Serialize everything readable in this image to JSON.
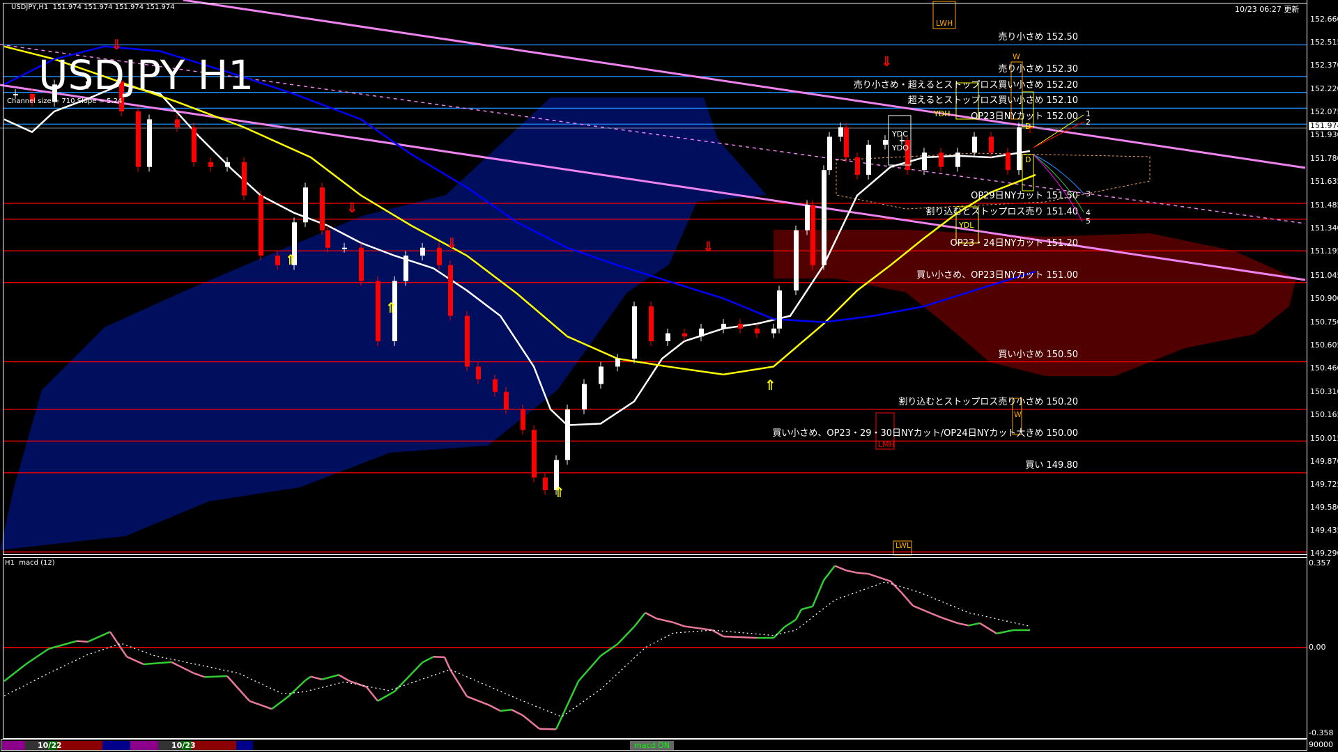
{
  "header": {
    "symbol_line": "USDJPY,H1  151.974 151.974 151.974 151.974",
    "title": "USDJPY H1",
    "channel_info": "Channel size = 710 Slope = 5.24",
    "updated": "10/23 06:27 更新",
    "current_price": "151.974"
  },
  "colors": {
    "background": "#000000",
    "bull_candle": "#ffffff",
    "bear_candle": "#ff0000",
    "ma_fast": "#ffffff",
    "ma_mid": "#ffff00",
    "ma_slow": "#0000ff",
    "trendline": "#ee82ee",
    "level_sell": "#1e90ff",
    "level_buy": "#ff0000",
    "macd_up": "#32cd32",
    "macd_down": "#e8799a",
    "macd_signal": "#ffffff"
  },
  "price_axis": {
    "ticks": [
      "152.660",
      "152.515",
      "152.370",
      "152.220",
      "152.075",
      "151.930",
      "151.780",
      "151.635",
      "151.485",
      "151.340",
      "151.195",
      "151.045",
      "150.900",
      "150.750",
      "150.605",
      "150.460",
      "150.310",
      "150.165",
      "150.015",
      "149.870",
      "149.725",
      "149.580",
      "149.435",
      "149.290"
    ]
  },
  "levels": [
    {
      "price": 152.5,
      "label": "売り小さめ 152.50",
      "type": "sell"
    },
    {
      "price": 152.3,
      "label": "売り小さめ 152.30",
      "type": "sell"
    },
    {
      "price": 152.2,
      "label": "売り小さめ・超えるとストップロス買い小さめ 152.20",
      "type": "sell"
    },
    {
      "price": 152.1,
      "label": "超えるとストップロス買い小さめ 152.10",
      "type": "sell"
    },
    {
      "price": 152.0,
      "label": "OP23日NYカット 152.00",
      "type": "sell"
    },
    {
      "price": 151.5,
      "label": "OP29日NYカット 151.50",
      "type": "buy"
    },
    {
      "price": 151.4,
      "label": "割り込むとストップロス売り 151.40",
      "type": "buy"
    },
    {
      "price": 151.2,
      "label": "OP23・24日NYカット 151.20",
      "type": "buy"
    },
    {
      "price": 151.0,
      "label": "買い小さめ、OP23日NYカット 151.00",
      "type": "buy"
    },
    {
      "price": 150.5,
      "label": "買い小さめ 150.50",
      "type": "buy"
    },
    {
      "price": 150.2,
      "label": "割り込むとストップロス売り小さめ 150.20",
      "type": "buy"
    },
    {
      "price": 150.0,
      "label": "買い小さめ、OP23・29・30日NYカット/OP24日NYカット大きめ 150.00",
      "type": "buy"
    },
    {
      "price": 149.8,
      "label": "買い 149.80",
      "type": "buy"
    }
  ],
  "markers": {
    "lwh": "LWH",
    "lwl": "LWL",
    "lmh": "LMH",
    "ydh": "YDH",
    "ydl": "YDL",
    "ydc": "YDC",
    "ydo": "YDO",
    "d_upper": "D",
    "d_lower": "D",
    "w_upper": "W",
    "w_lower": "W",
    "proj": [
      "1",
      "2",
      "3",
      "4",
      "5"
    ]
  },
  "chart_data": {
    "type": "candlestick",
    "symbol": "USDJPY",
    "timeframe": "H1",
    "ylim": [
      149.27,
      152.78
    ],
    "closes": [
      [
        2,
        152.19
      ],
      [
        5,
        152.14
      ],
      [
        9,
        152.25
      ],
      [
        15,
        152.27
      ],
      [
        21,
        152.08
      ],
      [
        24,
        151.73
      ],
      [
        26,
        152.03
      ],
      [
        31,
        151.98
      ],
      [
        34,
        151.76
      ],
      [
        37,
        151.73
      ],
      [
        40,
        151.76
      ],
      [
        43,
        151.55
      ],
      [
        46,
        151.17
      ],
      [
        49,
        151.11
      ],
      [
        52,
        151.38
      ],
      [
        54,
        151.6
      ],
      [
        57,
        151.33
      ],
      [
        58,
        151.22
      ],
      [
        61,
        151.22
      ],
      [
        64,
        151.01
      ],
      [
        67,
        150.63
      ],
      [
        70,
        151.01
      ],
      [
        72,
        151.17
      ],
      [
        75,
        151.22
      ],
      [
        78,
        151.11
      ],
      [
        80,
        150.79
      ],
      [
        83,
        150.47
      ],
      [
        85,
        150.39
      ],
      [
        88,
        150.31
      ],
      [
        90,
        150.2
      ],
      [
        93,
        150.07
      ],
      [
        95,
        149.77
      ],
      [
        97,
        149.69
      ],
      [
        99,
        149.88
      ],
      [
        101,
        150.2
      ],
      [
        104,
        150.36
      ],
      [
        107,
        150.47
      ],
      [
        110,
        150.52
      ],
      [
        113,
        150.85
      ],
      [
        116,
        150.63
      ],
      [
        119,
        150.68
      ],
      [
        122,
        150.66
      ],
      [
        125,
        150.71
      ],
      [
        129,
        150.74
      ],
      [
        132,
        150.71
      ],
      [
        135,
        150.68
      ],
      [
        138,
        150.71
      ],
      [
        139,
        150.95
      ],
      [
        142,
        151.33
      ],
      [
        144,
        151.49
      ],
      [
        145,
        151.11
      ],
      [
        147,
        151.71
      ],
      [
        148,
        151.92
      ],
      [
        150,
        151.98
      ],
      [
        151,
        151.79
      ],
      [
        153,
        151.68
      ],
      [
        155,
        151.87
      ],
      [
        158,
        151.9
      ],
      [
        161,
        151.9
      ],
      [
        162,
        151.71
      ],
      [
        165,
        151.82
      ],
      [
        168,
        151.73
      ],
      [
        171,
        151.82
      ],
      [
        174,
        151.92
      ],
      [
        177,
        151.82
      ],
      [
        180,
        151.71
      ],
      [
        182,
        151.98
      ],
      [
        184,
        151.974
      ]
    ],
    "moving_averages": [
      {
        "color": "#ffffff",
        "values": [
          [
            0,
            152.03
          ],
          [
            5,
            151.95
          ],
          [
            9,
            152.08
          ],
          [
            15,
            152.16
          ],
          [
            21,
            152.25
          ],
          [
            28,
            152.19
          ],
          [
            35,
            151.92
          ],
          [
            41,
            151.71
          ],
          [
            46,
            151.55
          ],
          [
            52,
            151.44
          ],
          [
            58,
            151.36
          ],
          [
            64,
            151.25
          ],
          [
            70,
            151.17
          ],
          [
            77,
            151.09
          ],
          [
            83,
            150.95
          ],
          [
            89,
            150.79
          ],
          [
            95,
            150.47
          ],
          [
            98,
            150.2
          ],
          [
            101,
            150.1
          ],
          [
            107,
            150.11
          ],
          [
            113,
            150.25
          ],
          [
            118,
            150.52
          ],
          [
            122,
            150.63
          ],
          [
            129,
            150.71
          ],
          [
            135,
            150.74
          ],
          [
            141,
            150.79
          ],
          [
            147,
            151.11
          ],
          [
            153,
            151.55
          ],
          [
            159,
            151.73
          ],
          [
            165,
            151.79
          ],
          [
            171,
            151.8
          ],
          [
            177,
            151.79
          ],
          [
            184,
            151.83
          ]
        ]
      },
      {
        "color": "#ffff00",
        "values": [
          [
            0,
            152.49
          ],
          [
            9,
            152.41
          ],
          [
            18,
            152.3
          ],
          [
            31,
            152.14
          ],
          [
            43,
            151.98
          ],
          [
            55,
            151.79
          ],
          [
            64,
            151.55
          ],
          [
            73,
            151.36
          ],
          [
            83,
            151.17
          ],
          [
            92,
            150.93
          ],
          [
            101,
            150.66
          ],
          [
            110,
            150.52
          ],
          [
            119,
            150.47
          ],
          [
            129,
            150.42
          ],
          [
            138,
            150.47
          ],
          [
            147,
            150.74
          ],
          [
            153,
            150.95
          ],
          [
            159,
            151.11
          ],
          [
            165,
            151.28
          ],
          [
            171,
            151.44
          ],
          [
            177,
            151.57
          ],
          [
            185,
            151.68
          ]
        ]
      },
      {
        "color": "#0000ff",
        "values": [
          [
            0,
            152.25
          ],
          [
            9,
            152.41
          ],
          [
            18,
            152.49
          ],
          [
            28,
            152.46
          ],
          [
            40,
            152.33
          ],
          [
            52,
            152.19
          ],
          [
            64,
            152.03
          ],
          [
            73,
            151.81
          ],
          [
            83,
            151.6
          ],
          [
            92,
            151.38
          ],
          [
            101,
            151.22
          ],
          [
            110,
            151.11
          ],
          [
            119,
            151.01
          ],
          [
            129,
            150.9
          ],
          [
            138,
            150.77
          ],
          [
            147,
            150.75
          ],
          [
            156,
            150.79
          ],
          [
            165,
            150.85
          ],
          [
            174,
            150.95
          ],
          [
            185,
            151.07
          ]
        ]
      }
    ],
    "macd": {
      "title": "H1  macd (12)",
      "ylim": [
        -0.358,
        0.357
      ],
      "ticks": [
        "0.357",
        "0.00",
        "-0.358"
      ],
      "volume_tick": "90000",
      "main": [
        [
          0,
          -0.139
        ],
        [
          4,
          -0.067
        ],
        [
          8,
          -0.005
        ],
        [
          13,
          0.027
        ],
        [
          15,
          0.024
        ],
        [
          19,
          0.065
        ],
        [
          22,
          -0.038
        ],
        [
          25,
          -0.069
        ],
        [
          30,
          -0.06
        ],
        [
          34,
          -0.106
        ],
        [
          36,
          -0.122
        ],
        [
          40,
          -0.118
        ],
        [
          44,
          -0.221
        ],
        [
          48,
          -0.254
        ],
        [
          51,
          -0.202
        ],
        [
          54,
          -0.136
        ],
        [
          55,
          -0.12
        ],
        [
          57,
          -0.132
        ],
        [
          60,
          -0.113
        ],
        [
          62,
          -0.139
        ],
        [
          65,
          -0.163
        ],
        [
          67,
          -0.221
        ],
        [
          70,
          -0.182
        ],
        [
          75,
          -0.062
        ],
        [
          77,
          -0.038
        ],
        [
          79,
          -0.04
        ],
        [
          80,
          -0.091
        ],
        [
          83,
          -0.202
        ],
        [
          87,
          -0.238
        ],
        [
          89,
          -0.262
        ],
        [
          91,
          -0.257
        ],
        [
          93,
          -0.28
        ],
        [
          96,
          -0.336
        ],
        [
          99,
          -0.338
        ],
        [
          103,
          -0.139
        ],
        [
          107,
          -0.034
        ],
        [
          110,
          0.014
        ],
        [
          113,
          0.086
        ],
        [
          115,
          0.144
        ],
        [
          117,
          0.12
        ],
        [
          120,
          0.104
        ],
        [
          122,
          0.088
        ],
        [
          127,
          0.072
        ],
        [
          129,
          0.046
        ],
        [
          135,
          0.04
        ],
        [
          138,
          0.04
        ],
        [
          140,
          0.086
        ],
        [
          142,
          0.115
        ],
        [
          143,
          0.158
        ],
        [
          145,
          0.17
        ],
        [
          147,
          0.278
        ],
        [
          149,
          0.338
        ],
        [
          151,
          0.319
        ],
        [
          153,
          0.309
        ],
        [
          155,
          0.305
        ],
        [
          159,
          0.274
        ],
        [
          161,
          0.226
        ],
        [
          163,
          0.173
        ],
        [
          166,
          0.144
        ],
        [
          168,
          0.125
        ],
        [
          171,
          0.101
        ],
        [
          173,
          0.091
        ],
        [
          175,
          0.101
        ],
        [
          178,
          0.058
        ],
        [
          181,
          0.072
        ],
        [
          184,
          0.072
        ]
      ],
      "signal": [
        [
          0,
          -0.2
        ],
        [
          8,
          -0.106
        ],
        [
          15,
          -0.029
        ],
        [
          21,
          0.017
        ],
        [
          27,
          -0.034
        ],
        [
          35,
          -0.072
        ],
        [
          42,
          -0.106
        ],
        [
          50,
          -0.192
        ],
        [
          54,
          -0.182
        ],
        [
          61,
          -0.142
        ],
        [
          69,
          -0.178
        ],
        [
          80,
          -0.091
        ],
        [
          92,
          -0.211
        ],
        [
          100,
          -0.286
        ],
        [
          107,
          -0.173
        ],
        [
          115,
          0
        ],
        [
          120,
          0.06
        ],
        [
          127,
          0.072
        ],
        [
          138,
          0.05
        ],
        [
          142,
          0.072
        ],
        [
          149,
          0.197
        ],
        [
          158,
          0.271
        ],
        [
          164,
          0.23
        ],
        [
          173,
          0.144
        ],
        [
          184,
          0.088
        ]
      ]
    }
  },
  "bottom_bar": {
    "date1": "10/22",
    "date2": "10/23",
    "macd_toggle": "macd ON"
  }
}
